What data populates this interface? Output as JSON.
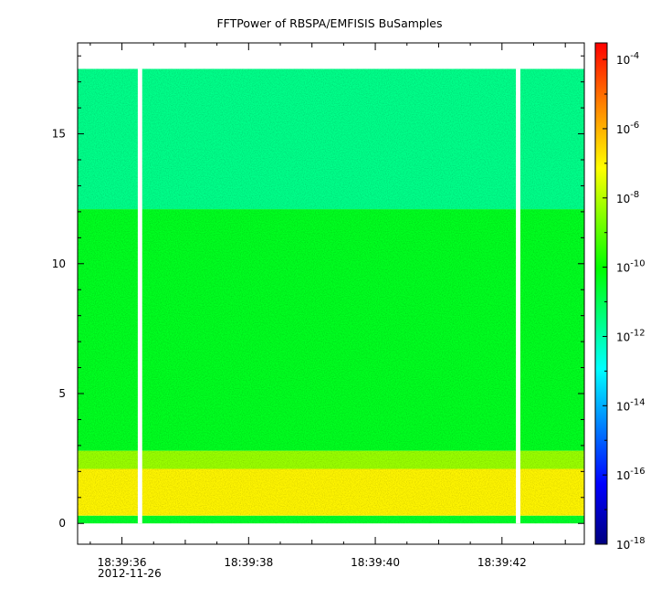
{
  "chart_data": {
    "type": "heatmap",
    "title": "FFTPower of RBSPA/EMFISIS  BuSamples",
    "xlabel": "",
    "ylabel": "",
    "x_ticks": [
      "18:39:36",
      "18:39:38",
      "18:39:40",
      "18:39:42"
    ],
    "x_date_label": "2012-11-26",
    "x_range_seconds": [
      35.3,
      43.3
    ],
    "y_ticks": [
      "0",
      "5",
      "10",
      "15"
    ],
    "y_range": [
      -0.8,
      18.5
    ],
    "z_scale": "log",
    "z_range": [
      1e-18,
      0.0003
    ],
    "colorbar_ticks": [
      {
        "base": "10",
        "exp": "-4",
        "value": -4
      },
      {
        "base": "10",
        "exp": "-6",
        "value": -6
      },
      {
        "base": "10",
        "exp": "-8",
        "value": -8
      },
      {
        "base": "10",
        "exp": "-10",
        "value": -10
      },
      {
        "base": "10",
        "exp": "-12",
        "value": -12
      },
      {
        "base": "10",
        "exp": "-14",
        "value": -14
      },
      {
        "base": "10",
        "exp": "-16",
        "value": -16
      },
      {
        "base": "10",
        "exp": "-18",
        "value": -18
      }
    ],
    "data_gaps_seconds": [
      [
        36.25,
        36.32
      ],
      [
        42.22,
        42.29
      ]
    ],
    "frequency_bands": [
      {
        "y_range": [
          0.0,
          0.3
        ],
        "log10_power": -10.5
      },
      {
        "y_range": [
          0.3,
          2.1
        ],
        "log10_power": -7.0
      },
      {
        "y_range": [
          2.1,
          2.8
        ],
        "log10_power": -8.3
      },
      {
        "y_range": [
          2.8,
          12.1
        ],
        "log10_power": -10.4
      },
      {
        "y_range": [
          12.1,
          17.5
        ],
        "log10_power": -11.6
      }
    ],
    "colormap": [
      "#00007f",
      "#0000ff",
      "#00ffff",
      "#00ff00",
      "#ffff00",
      "#ff7f00",
      "#ff0000"
    ]
  }
}
